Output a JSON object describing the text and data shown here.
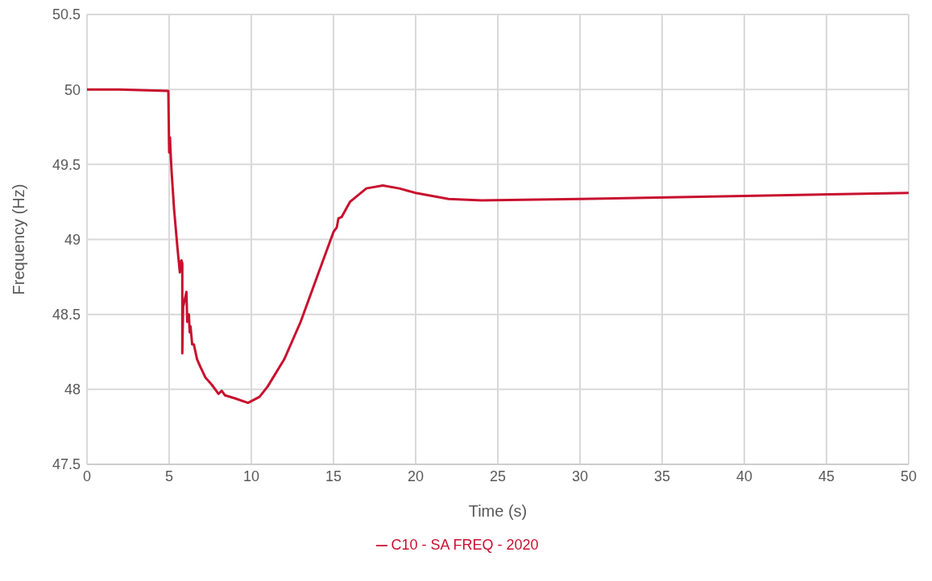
{
  "chart_data": {
    "type": "line",
    "xlabel": "Time (s)",
    "ylabel": "Frequency (Hz)",
    "xlim": [
      0,
      50
    ],
    "xticks": [
      0,
      5,
      10,
      15,
      20,
      25,
      30,
      35,
      40,
      45,
      50
    ],
    "ylim": [
      47.5,
      50.5
    ],
    "yticks": [
      47.5,
      48,
      48.5,
      49,
      49.5,
      50,
      50.5
    ],
    "grid": true,
    "legend": "bottom",
    "marker": "none",
    "line_style": "solid",
    "series": [
      {
        "name": "C10 - SA FREQ - 2020",
        "color": "#c8102e",
        "x": [
          0,
          2,
          4.95,
          5.0,
          5.05,
          5.1,
          5.15,
          5.3,
          5.5,
          5.65,
          5.7,
          5.75,
          5.8,
          5.8,
          5.85,
          5.95,
          6.05,
          6.1,
          6.2,
          6.25,
          6.3,
          6.4,
          6.5,
          6.7,
          6.9,
          7.2,
          7.6,
          8.0,
          8.2,
          8.4,
          9.0,
          9.8,
          10.5,
          11,
          12,
          13,
          14,
          15,
          15.2,
          15.3,
          15.5,
          16,
          17,
          18,
          19,
          20,
          22,
          24,
          30,
          40,
          50
        ],
        "values": [
          50.0,
          50.0,
          49.99,
          49.58,
          49.68,
          49.55,
          49.45,
          49.2,
          48.95,
          48.78,
          48.85,
          48.86,
          48.84,
          48.24,
          48.55,
          48.6,
          48.65,
          48.45,
          48.5,
          48.38,
          48.42,
          48.3,
          48.3,
          48.2,
          48.15,
          48.08,
          48.03,
          47.97,
          47.99,
          47.96,
          47.94,
          47.91,
          47.95,
          48.02,
          48.2,
          48.45,
          48.75,
          49.05,
          49.08,
          49.14,
          49.15,
          49.25,
          49.34,
          49.36,
          49.34,
          49.31,
          49.27,
          49.26,
          49.27,
          49.29,
          49.31
        ]
      }
    ]
  }
}
